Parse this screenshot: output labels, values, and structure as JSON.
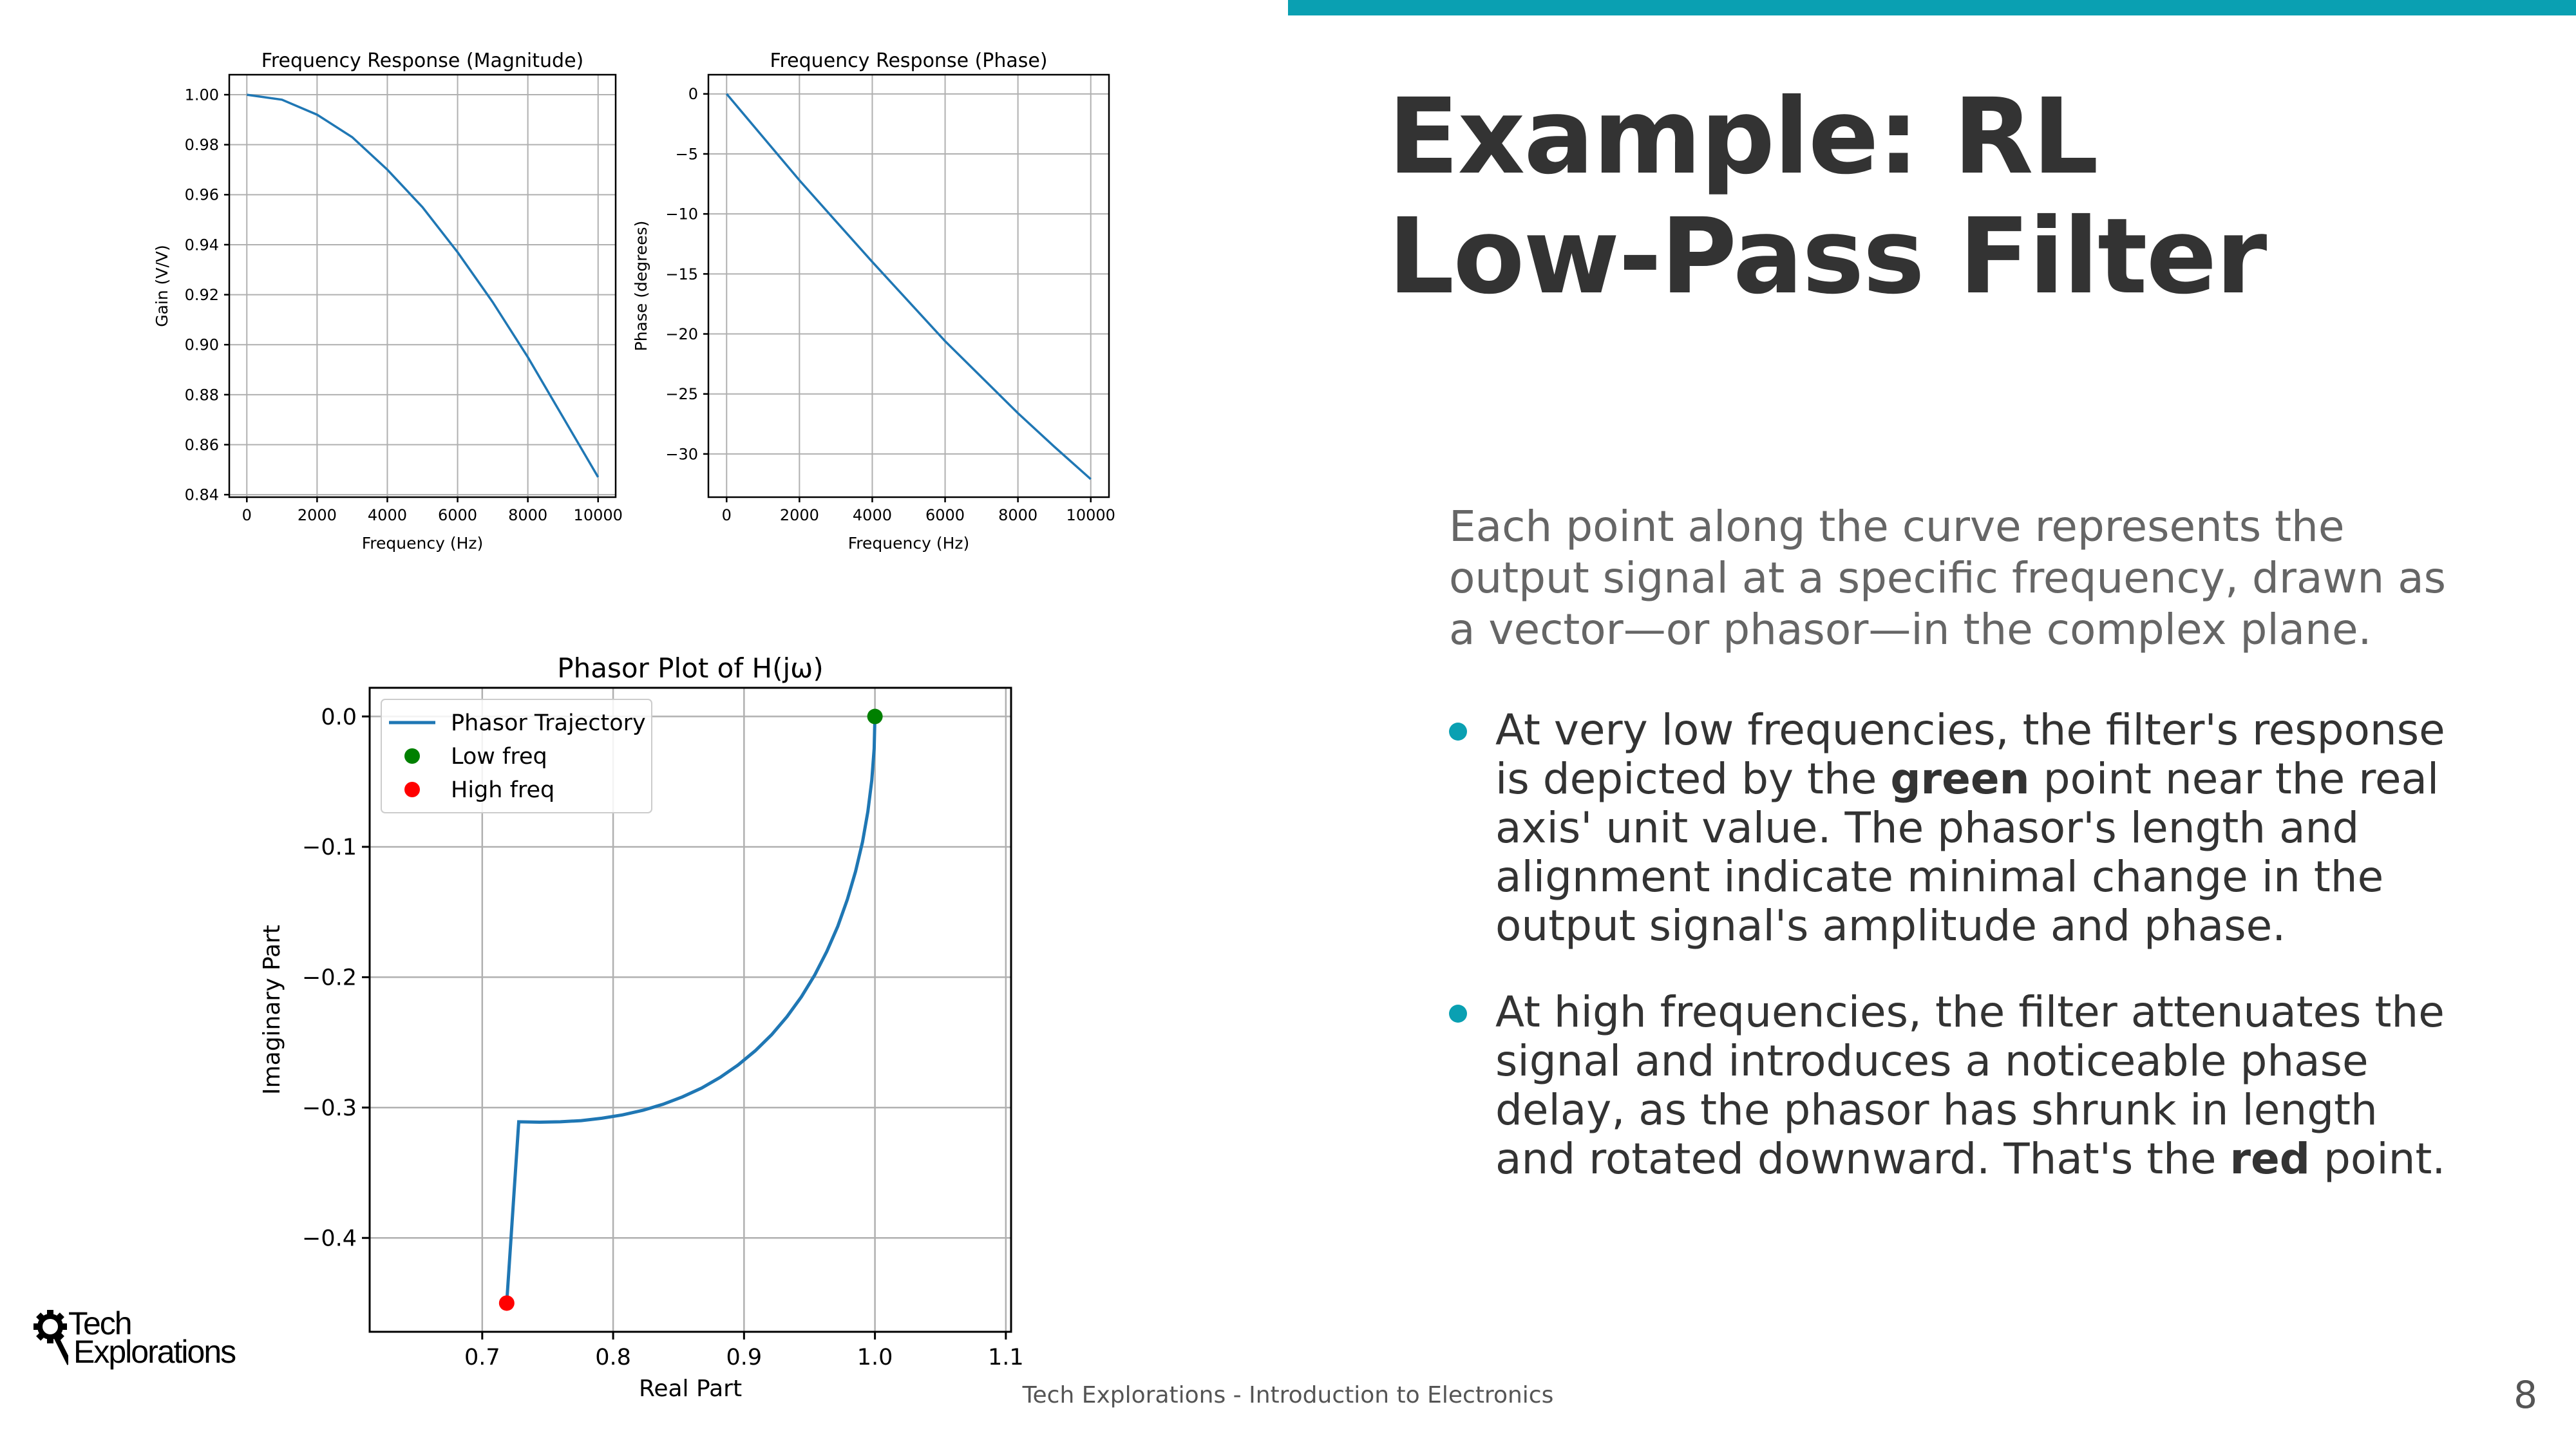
{
  "slide": {
    "title_line1": "Example: RL",
    "title_line2": "Low-Pass Filter",
    "intro": "Each point along the curve represents the output signal at a specific frequency, drawn as a vector—or phasor—in the complex plane.",
    "bullets": [
      {
        "before": "At very low frequencies, the filter's response is depicted by the ",
        "bold": "green",
        "after": " point near the real axis' unit value. The phasor's length and alignment indicate minimal change in the output signal's amplitude and phase."
      },
      {
        "before": "At high frequencies, the filter attenuates the signal and introduces a noticeable phase delay, as the phasor has shrunk in length and rotated downward. That's the ",
        "bold": "red",
        "after": " point."
      }
    ],
    "footer": "Tech Explorations - Introduction to Electronics",
    "page_number": "8",
    "logo": {
      "line1": "Tech",
      "line2": "Explorations"
    },
    "accent_color": "#0aa0b2"
  },
  "chart_data": [
    {
      "type": "line",
      "title": "Frequency Response (Magnitude)",
      "xlabel": "Frequency (Hz)",
      "ylabel": "Gain (V/V)",
      "xlim": [
        -500,
        10500
      ],
      "ylim": [
        0.839,
        1.008
      ],
      "xticks": [
        0,
        2000,
        4000,
        6000,
        8000,
        10000
      ],
      "xtick_labels": [
        "0",
        "2000",
        "4000",
        "6000",
        "8000",
        "10000"
      ],
      "yticks": [
        0.84,
        0.86,
        0.88,
        0.9,
        0.92,
        0.94,
        0.96,
        0.98,
        1.0
      ],
      "ytick_labels": [
        "0.84",
        "0.86",
        "0.88",
        "0.90",
        "0.92",
        "0.94",
        "0.96",
        "0.98",
        "1.00"
      ],
      "grid": true,
      "color": "#1f77b4",
      "x": [
        0,
        1000,
        2000,
        3000,
        4000,
        5000,
        6000,
        7000,
        8000,
        9000,
        10000
      ],
      "y": [
        1.0,
        0.998,
        0.992,
        0.983,
        0.97,
        0.955,
        0.937,
        0.917,
        0.895,
        0.871,
        0.847
      ]
    },
    {
      "type": "line",
      "title": "Frequency Response (Phase)",
      "xlabel": "Frequency (Hz)",
      "ylabel": "Phase (degrees)",
      "xlim": [
        -500,
        10500
      ],
      "ylim": [
        -33.6,
        1.6
      ],
      "xticks": [
        0,
        2000,
        4000,
        6000,
        8000,
        10000
      ],
      "xtick_labels": [
        "0",
        "2000",
        "4000",
        "6000",
        "8000",
        "10000"
      ],
      "yticks": [
        0,
        -5,
        -10,
        -15,
        -20,
        -25,
        -30
      ],
      "ytick_labels": [
        "0",
        "−5",
        "−10",
        "−15",
        "−20",
        "−25",
        "−30"
      ],
      "grid": true,
      "color": "#1f77b4",
      "x": [
        0,
        1000,
        2000,
        3000,
        4000,
        5000,
        6000,
        7000,
        8000,
        9000,
        10000
      ],
      "y": [
        0,
        -3.6,
        -7.2,
        -10.6,
        -14.0,
        -17.3,
        -20.6,
        -23.6,
        -26.6,
        -29.4,
        -32.1
      ]
    },
    {
      "type": "line",
      "title": "Phasor Plot of H(jω)",
      "xlabel": "Real Part",
      "ylabel": "Imaginary Part",
      "xlim": [
        0.614,
        1.104
      ],
      "ylim": [
        -0.472,
        0.022
      ],
      "xticks": [
        0.7,
        0.8,
        0.9,
        1.0,
        1.1
      ],
      "xtick_labels": [
        "0.7",
        "0.8",
        "0.9",
        "1.0",
        "1.1"
      ],
      "yticks": [
        0.0,
        -0.1,
        -0.2,
        -0.3,
        -0.4
      ],
      "ytick_labels": [
        "0.0",
        "−0.1",
        "−0.2",
        "−0.3",
        "−0.4"
      ],
      "grid": true,
      "legend": "top-left",
      "series": [
        {
          "name": "Phasor Trajectory",
          "kind": "line",
          "color": "#1f77b4",
          "x": [
            1.0,
            0.9994,
            0.9976,
            0.9946,
            0.9905,
            0.9852,
            0.9789,
            0.9716,
            0.9632,
            0.954,
            0.9438,
            0.9328,
            0.9211,
            0.9086,
            0.8955,
            0.8818,
            0.8676,
            0.853,
            0.838,
            0.8227,
            0.8072,
            0.7914,
            0.7756,
            0.7597,
            0.7438,
            0.7279,
            0.7187
          ],
          "y": [
            0.0,
            -0.0246,
            -0.049,
            -0.073,
            -0.0963,
            -0.1189,
            -0.1405,
            -0.161,
            -0.1803,
            -0.1983,
            -0.215,
            -0.2303,
            -0.2441,
            -0.2564,
            -0.2673,
            -0.2768,
            -0.285,
            -0.2918,
            -0.2975,
            -0.3021,
            -0.3056,
            -0.3082,
            -0.31,
            -0.3109,
            -0.3112,
            -0.3109,
            -0.45
          ]
        },
        {
          "name": "Low freq",
          "kind": "point",
          "color": "#008000",
          "x": [
            1.0
          ],
          "y": [
            0.0
          ]
        },
        {
          "name": "High freq",
          "kind": "point",
          "color": "#ff0000",
          "x": [
            0.7187
          ],
          "y": [
            -0.45
          ]
        }
      ]
    }
  ]
}
